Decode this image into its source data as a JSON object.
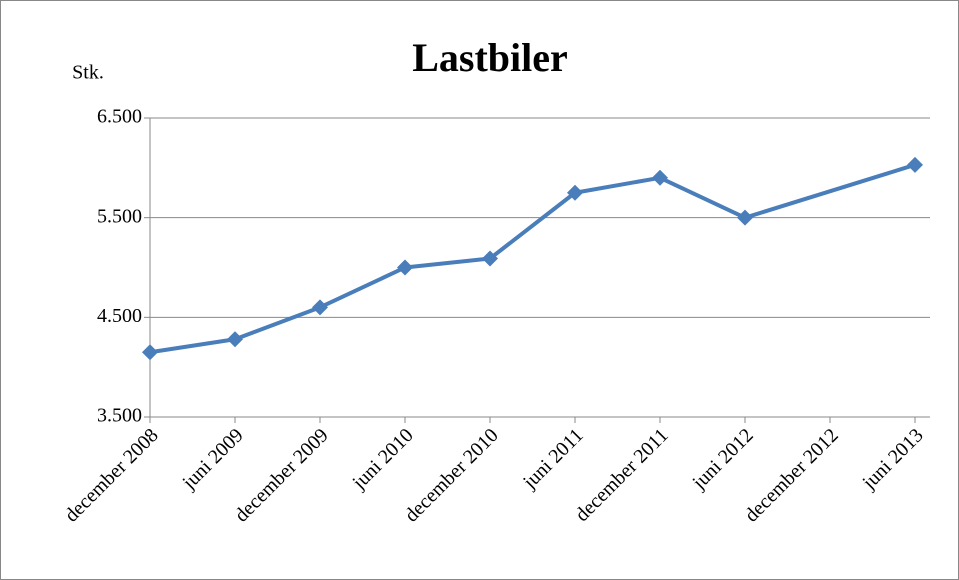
{
  "chart_data": {
    "type": "line",
    "title": "Lastbiler",
    "y_label": "Stk.",
    "categories": [
      "december 2008",
      "juni 2009",
      "december 2009",
      "juni 2010",
      "december 2010",
      "juni 2011",
      "december 2011",
      "juni 2012",
      "december 2012",
      "juni 2013"
    ],
    "series": [
      {
        "name": "Lastbiler",
        "color": "#4a7ebb",
        "values": [
          4150,
          4280,
          4600,
          5000,
          5090,
          5750,
          5900,
          5500,
          null,
          6030
        ]
      }
    ],
    "ylim": [
      3500,
      6500
    ],
    "yticks": [
      {
        "value": 3500,
        "label": "3.500"
      },
      {
        "value": 4500,
        "label": "4.500"
      },
      {
        "value": 5500,
        "label": "5.500"
      },
      {
        "value": 6500,
        "label": "6.500"
      }
    ],
    "grid": true
  }
}
